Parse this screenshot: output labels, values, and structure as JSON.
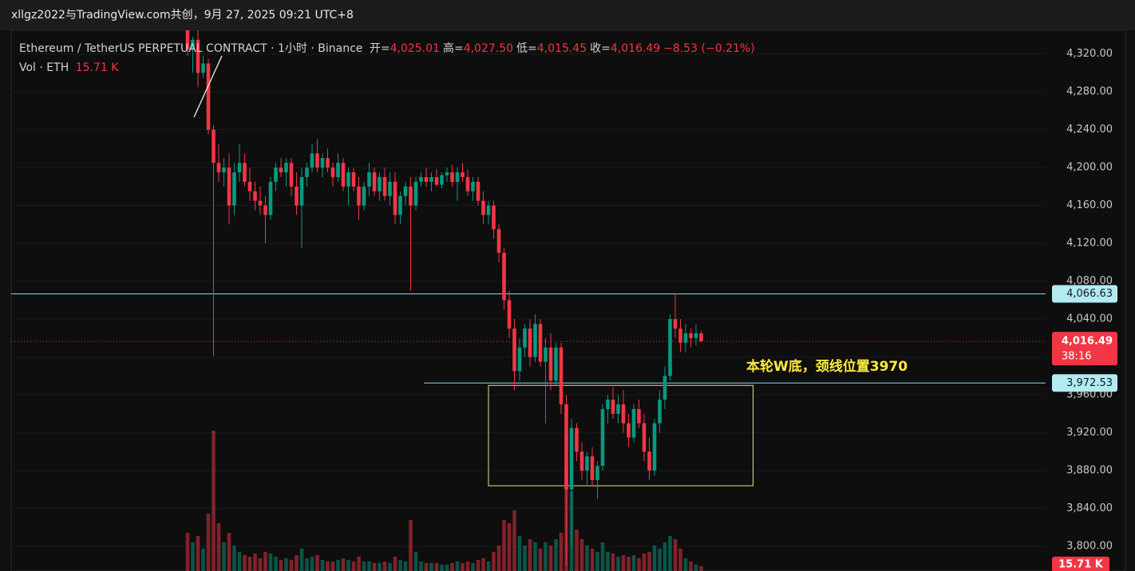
{
  "header": {
    "title": "xllgz2022与TradingView.com共创，9月 27, 2025 09:21 UTC+8"
  },
  "chart_data": {
    "type": "candlestick",
    "legend": {
      "symbol": "Ethereum / TetherUS PERPETUAL CONTRACT · 1小时 · Binance",
      "ohlc": [
        {
          "label": "开=",
          "value": "4,025.01"
        },
        {
          "label": "高=",
          "value": "4,027.50"
        },
        {
          "label": "低=",
          "value": "4,015.45"
        },
        {
          "label": "收=",
          "value": "4,016.49"
        }
      ],
      "change": "−8.53 (−0.21%)",
      "volume_label": "Vol · ETH",
      "volume_value": "15.71 K"
    },
    "up_color": "#089981",
    "down_color": "#f23645",
    "ylim": [
      3774,
      4345
    ],
    "yticks": [
      {
        "value": 3800,
        "label": "3,800.00"
      },
      {
        "value": 3840,
        "label": "3,840.00"
      },
      {
        "value": 3880,
        "label": "3,880.00"
      },
      {
        "value": 3920,
        "label": "3,920.00"
      },
      {
        "value": 3960,
        "label": "3,960.00"
      },
      {
        "value": 4000,
        "label": "4,000.00"
      },
      {
        "value": 4040,
        "label": "4,040.00"
      },
      {
        "value": 4080,
        "label": "4,080.00"
      },
      {
        "value": 4120,
        "label": "4,120.00"
      },
      {
        "value": 4160,
        "label": "4,160.00"
      },
      {
        "value": 4200,
        "label": "4,200.00"
      },
      {
        "value": 4240,
        "label": "4,240.00"
      },
      {
        "value": 4280,
        "label": "4,280.00"
      },
      {
        "value": 4320,
        "label": "4,320.00"
      }
    ],
    "grid": true,
    "vlim": [
      0,
      450
    ],
    "candles": [
      [
        4345,
        4345,
        4318,
        4325
      ],
      [
        4325,
        4338,
        4300,
        4335
      ],
      [
        4335,
        4345,
        4285,
        4300
      ],
      [
        4300,
        4318,
        4295,
        4310
      ],
      [
        4310,
        4315,
        4235,
        4240
      ],
      [
        4240,
        4245,
        4001,
        4205
      ],
      [
        4205,
        4225,
        4185,
        4195
      ],
      [
        4195,
        4210,
        4180,
        4200
      ],
      [
        4200,
        4215,
        4140,
        4160
      ],
      [
        4160,
        4205,
        4150,
        4195
      ],
      [
        4195,
        4225,
        4185,
        4205
      ],
      [
        4205,
        4215,
        4180,
        4185
      ],
      [
        4185,
        4200,
        4165,
        4175
      ],
      [
        4175,
        4185,
        4155,
        4165
      ],
      [
        4165,
        4180,
        4150,
        4160
      ],
      [
        4160,
        4170,
        4120,
        4150
      ],
      [
        4150,
        4190,
        4145,
        4185
      ],
      [
        4185,
        4205,
        4175,
        4200
      ],
      [
        4200,
        4210,
        4190,
        4195
      ],
      [
        4195,
        4210,
        4180,
        4205
      ],
      [
        4205,
        4210,
        4170,
        4180
      ],
      [
        4180,
        4195,
        4150,
        4160
      ],
      [
        4160,
        4200,
        4115,
        4190
      ],
      [
        4190,
        4205,
        4180,
        4200
      ],
      [
        4200,
        4225,
        4195,
        4215
      ],
      [
        4215,
        4230,
        4195,
        4200
      ],
      [
        4200,
        4215,
        4190,
        4210
      ],
      [
        4210,
        4220,
        4195,
        4200
      ],
      [
        4200,
        4205,
        4180,
        4190
      ],
      [
        4190,
        4215,
        4185,
        4205
      ],
      [
        4205,
        4210,
        4175,
        4180
      ],
      [
        4180,
        4200,
        4160,
        4195
      ],
      [
        4195,
        4200,
        4175,
        4180
      ],
      [
        4180,
        4190,
        4145,
        4160
      ],
      [
        4160,
        4185,
        4155,
        4180
      ],
      [
        4180,
        4205,
        4170,
        4195
      ],
      [
        4195,
        4200,
        4170,
        4175
      ],
      [
        4175,
        4195,
        4165,
        4190
      ],
      [
        4190,
        4200,
        4165,
        4170
      ],
      [
        4170,
        4195,
        4160,
        4185
      ],
      [
        4185,
        4195,
        4140,
        4150
      ],
      [
        4150,
        4175,
        4140,
        4170
      ],
      [
        4170,
        4185,
        4160,
        4180
      ],
      [
        4180,
        4190,
        4070,
        4160
      ],
      [
        4160,
        4190,
        4155,
        4185
      ],
      [
        4185,
        4195,
        4180,
        4190
      ],
      [
        4190,
        4200,
        4180,
        4185
      ],
      [
        4185,
        4195,
        4175,
        4190
      ],
      [
        4190,
        4198,
        4180,
        4182
      ],
      [
        4182,
        4195,
        4178,
        4192
      ],
      [
        4192,
        4200,
        4185,
        4195
      ],
      [
        4195,
        4203,
        4180,
        4185
      ],
      [
        4185,
        4200,
        4165,
        4195
      ],
      [
        4195,
        4205,
        4185,
        4190
      ],
      [
        4190,
        4198,
        4170,
        4175
      ],
      [
        4175,
        4190,
        4165,
        4185
      ],
      [
        4185,
        4190,
        4160,
        4165
      ],
      [
        4165,
        4175,
        4140,
        4150
      ],
      [
        4150,
        4165,
        4140,
        4160
      ],
      [
        4160,
        4165,
        4125,
        4135
      ],
      [
        4135,
        4140,
        4100,
        4110
      ],
      [
        4110,
        4115,
        4050,
        4060
      ],
      [
        4060,
        4070,
        4020,
        4030
      ],
      [
        4030,
        4040,
        3965,
        3985
      ],
      [
        3985,
        4020,
        3975,
        4010
      ],
      [
        4010,
        4035,
        4000,
        4030
      ],
      [
        4030,
        4040,
        3990,
        4000
      ],
      [
        4000,
        4045,
        3995,
        4035
      ],
      [
        4035,
        4040,
        3990,
        3995
      ],
      [
        3995,
        4020,
        3930,
        4010
      ],
      [
        4010,
        4025,
        3965,
        3975
      ],
      [
        3975,
        4015,
        3970,
        4010
      ],
      [
        4010,
        4015,
        3940,
        3950
      ],
      [
        3950,
        3960,
        3780,
        3860
      ],
      [
        3860,
        3935,
        3800,
        3925
      ],
      [
        3925,
        3930,
        3890,
        3900
      ],
      [
        3900,
        3910,
        3870,
        3880
      ],
      [
        3880,
        3900,
        3865,
        3895
      ],
      [
        3895,
        3905,
        3865,
        3870
      ],
      [
        3870,
        3890,
        3850,
        3885
      ],
      [
        3885,
        3950,
        3880,
        3945
      ],
      [
        3945,
        3960,
        3930,
        3955
      ],
      [
        3955,
        3968,
        3935,
        3940
      ],
      [
        3940,
        3960,
        3930,
        3950
      ],
      [
        3950,
        3965,
        3920,
        3930
      ],
      [
        3930,
        3940,
        3905,
        3915
      ],
      [
        3915,
        3950,
        3910,
        3945
      ],
      [
        3945,
        3955,
        3925,
        3930
      ],
      [
        3930,
        3940,
        3890,
        3900
      ],
      [
        3900,
        3915,
        3870,
        3880
      ],
      [
        3880,
        3935,
        3875,
        3930
      ],
      [
        3930,
        3965,
        3920,
        3955
      ],
      [
        3955,
        3990,
        3945,
        3980
      ],
      [
        3980,
        4045,
        3975,
        4040
      ],
      [
        4040,
        4066.63,
        4020,
        4030
      ],
      [
        4030,
        4040,
        4005,
        4015
      ],
      [
        4015,
        4035,
        4005,
        4025
      ],
      [
        4025,
        4030,
        4010,
        4020
      ],
      [
        4020,
        4035,
        4012,
        4025
      ],
      [
        4025.01,
        4027.5,
        4015.45,
        4016.49
      ]
    ],
    "volumes": [
      120,
      90,
      110,
      70,
      180,
      440,
      150,
      90,
      120,
      80,
      60,
      50,
      45,
      55,
      40,
      60,
      55,
      45,
      35,
      40,
      35,
      50,
      70,
      40,
      45,
      50,
      35,
      30,
      30,
      35,
      40,
      35,
      30,
      45,
      30,
      30,
      25,
      25,
      30,
      25,
      45,
      35,
      30,
      160,
      60,
      30,
      25,
      25,
      25,
      20,
      20,
      25,
      30,
      25,
      30,
      25,
      35,
      40,
      30,
      60,
      80,
      160,
      150,
      190,
      110,
      80,
      100,
      90,
      70,
      90,
      80,
      100,
      120,
      320,
      250,
      130,
      100,
      80,
      70,
      60,
      90,
      60,
      55,
      45,
      50,
      45,
      50,
      40,
      55,
      60,
      80,
      70,
      90,
      110,
      100,
      70,
      40,
      30,
      20,
      15.71
    ],
    "price_lines": [
      {
        "value": 4066.63,
        "label": "4,066.63",
        "color": "#80deea"
      },
      {
        "value": 3972.53,
        "label": "3,972.53",
        "color": "#80deea"
      }
    ],
    "current_price": {
      "value": 4016.49,
      "label": "4,016.49",
      "countdown": "38:16"
    },
    "box": {
      "x": [
        58,
        109
      ],
      "y": [
        3864,
        3970
      ],
      "color": "#e6e08c"
    },
    "annotation": "本轮W底，颈线位置3970"
  }
}
